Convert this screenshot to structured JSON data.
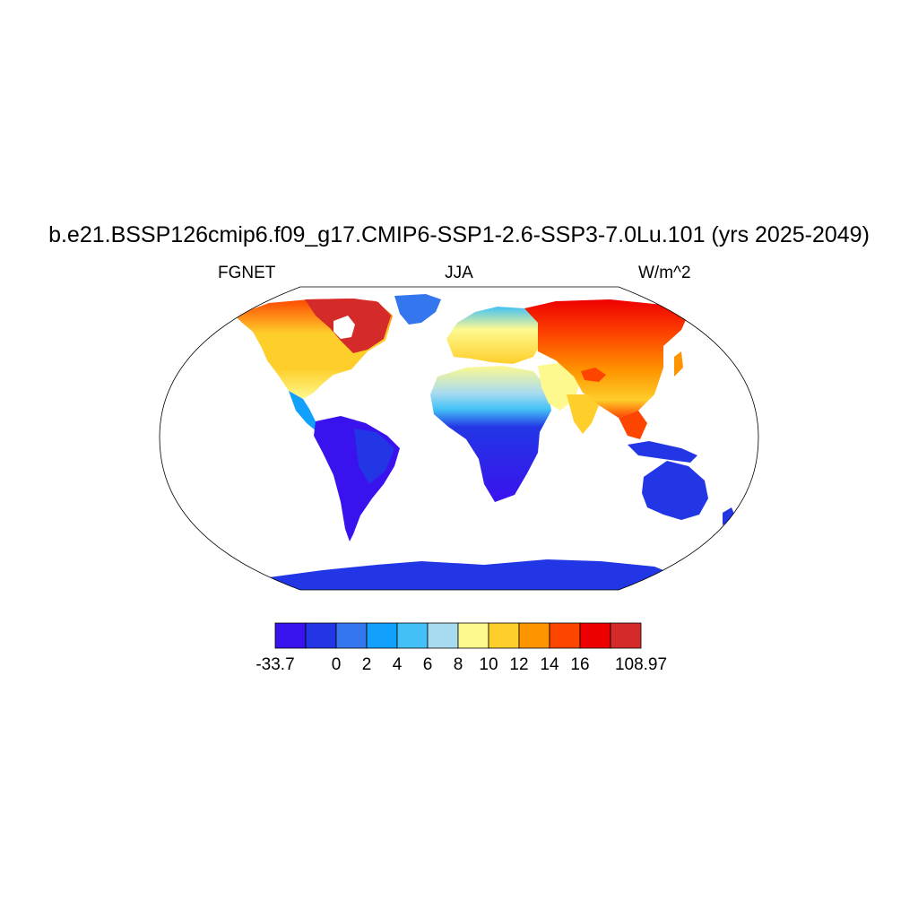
{
  "title": "b.e21.BSSP126cmip6.f09_g17.CMIP6-SSP1-2.6-SSP3-7.0Lu.101 (yrs 2025-2049)",
  "left_label": "FGNET",
  "center_label": "JJA",
  "right_label": "W/m^2",
  "colorbar": {
    "colors": [
      "#3a12ee",
      "#2336e5",
      "#3476ee",
      "#11a0fb",
      "#43c1f6",
      "#a8dbf0",
      "#fdf98f",
      "#fece2a",
      "#fe9400",
      "#fd4500",
      "#ee0000",
      "#d42a2a"
    ],
    "labels": [
      {
        "text": "-33.7",
        "boundary": 0
      },
      {
        "text": "0",
        "boundary": 2
      },
      {
        "text": "2",
        "boundary": 3
      },
      {
        "text": "4",
        "boundary": 4
      },
      {
        "text": "6",
        "boundary": 5
      },
      {
        "text": "8",
        "boundary": 6
      },
      {
        "text": "10",
        "boundary": 7
      },
      {
        "text": "12",
        "boundary": 8
      },
      {
        "text": "14",
        "boundary": 9
      },
      {
        "text": "16",
        "boundary": 10
      },
      {
        "text": "108.97",
        "boundary": 12
      }
    ]
  }
}
